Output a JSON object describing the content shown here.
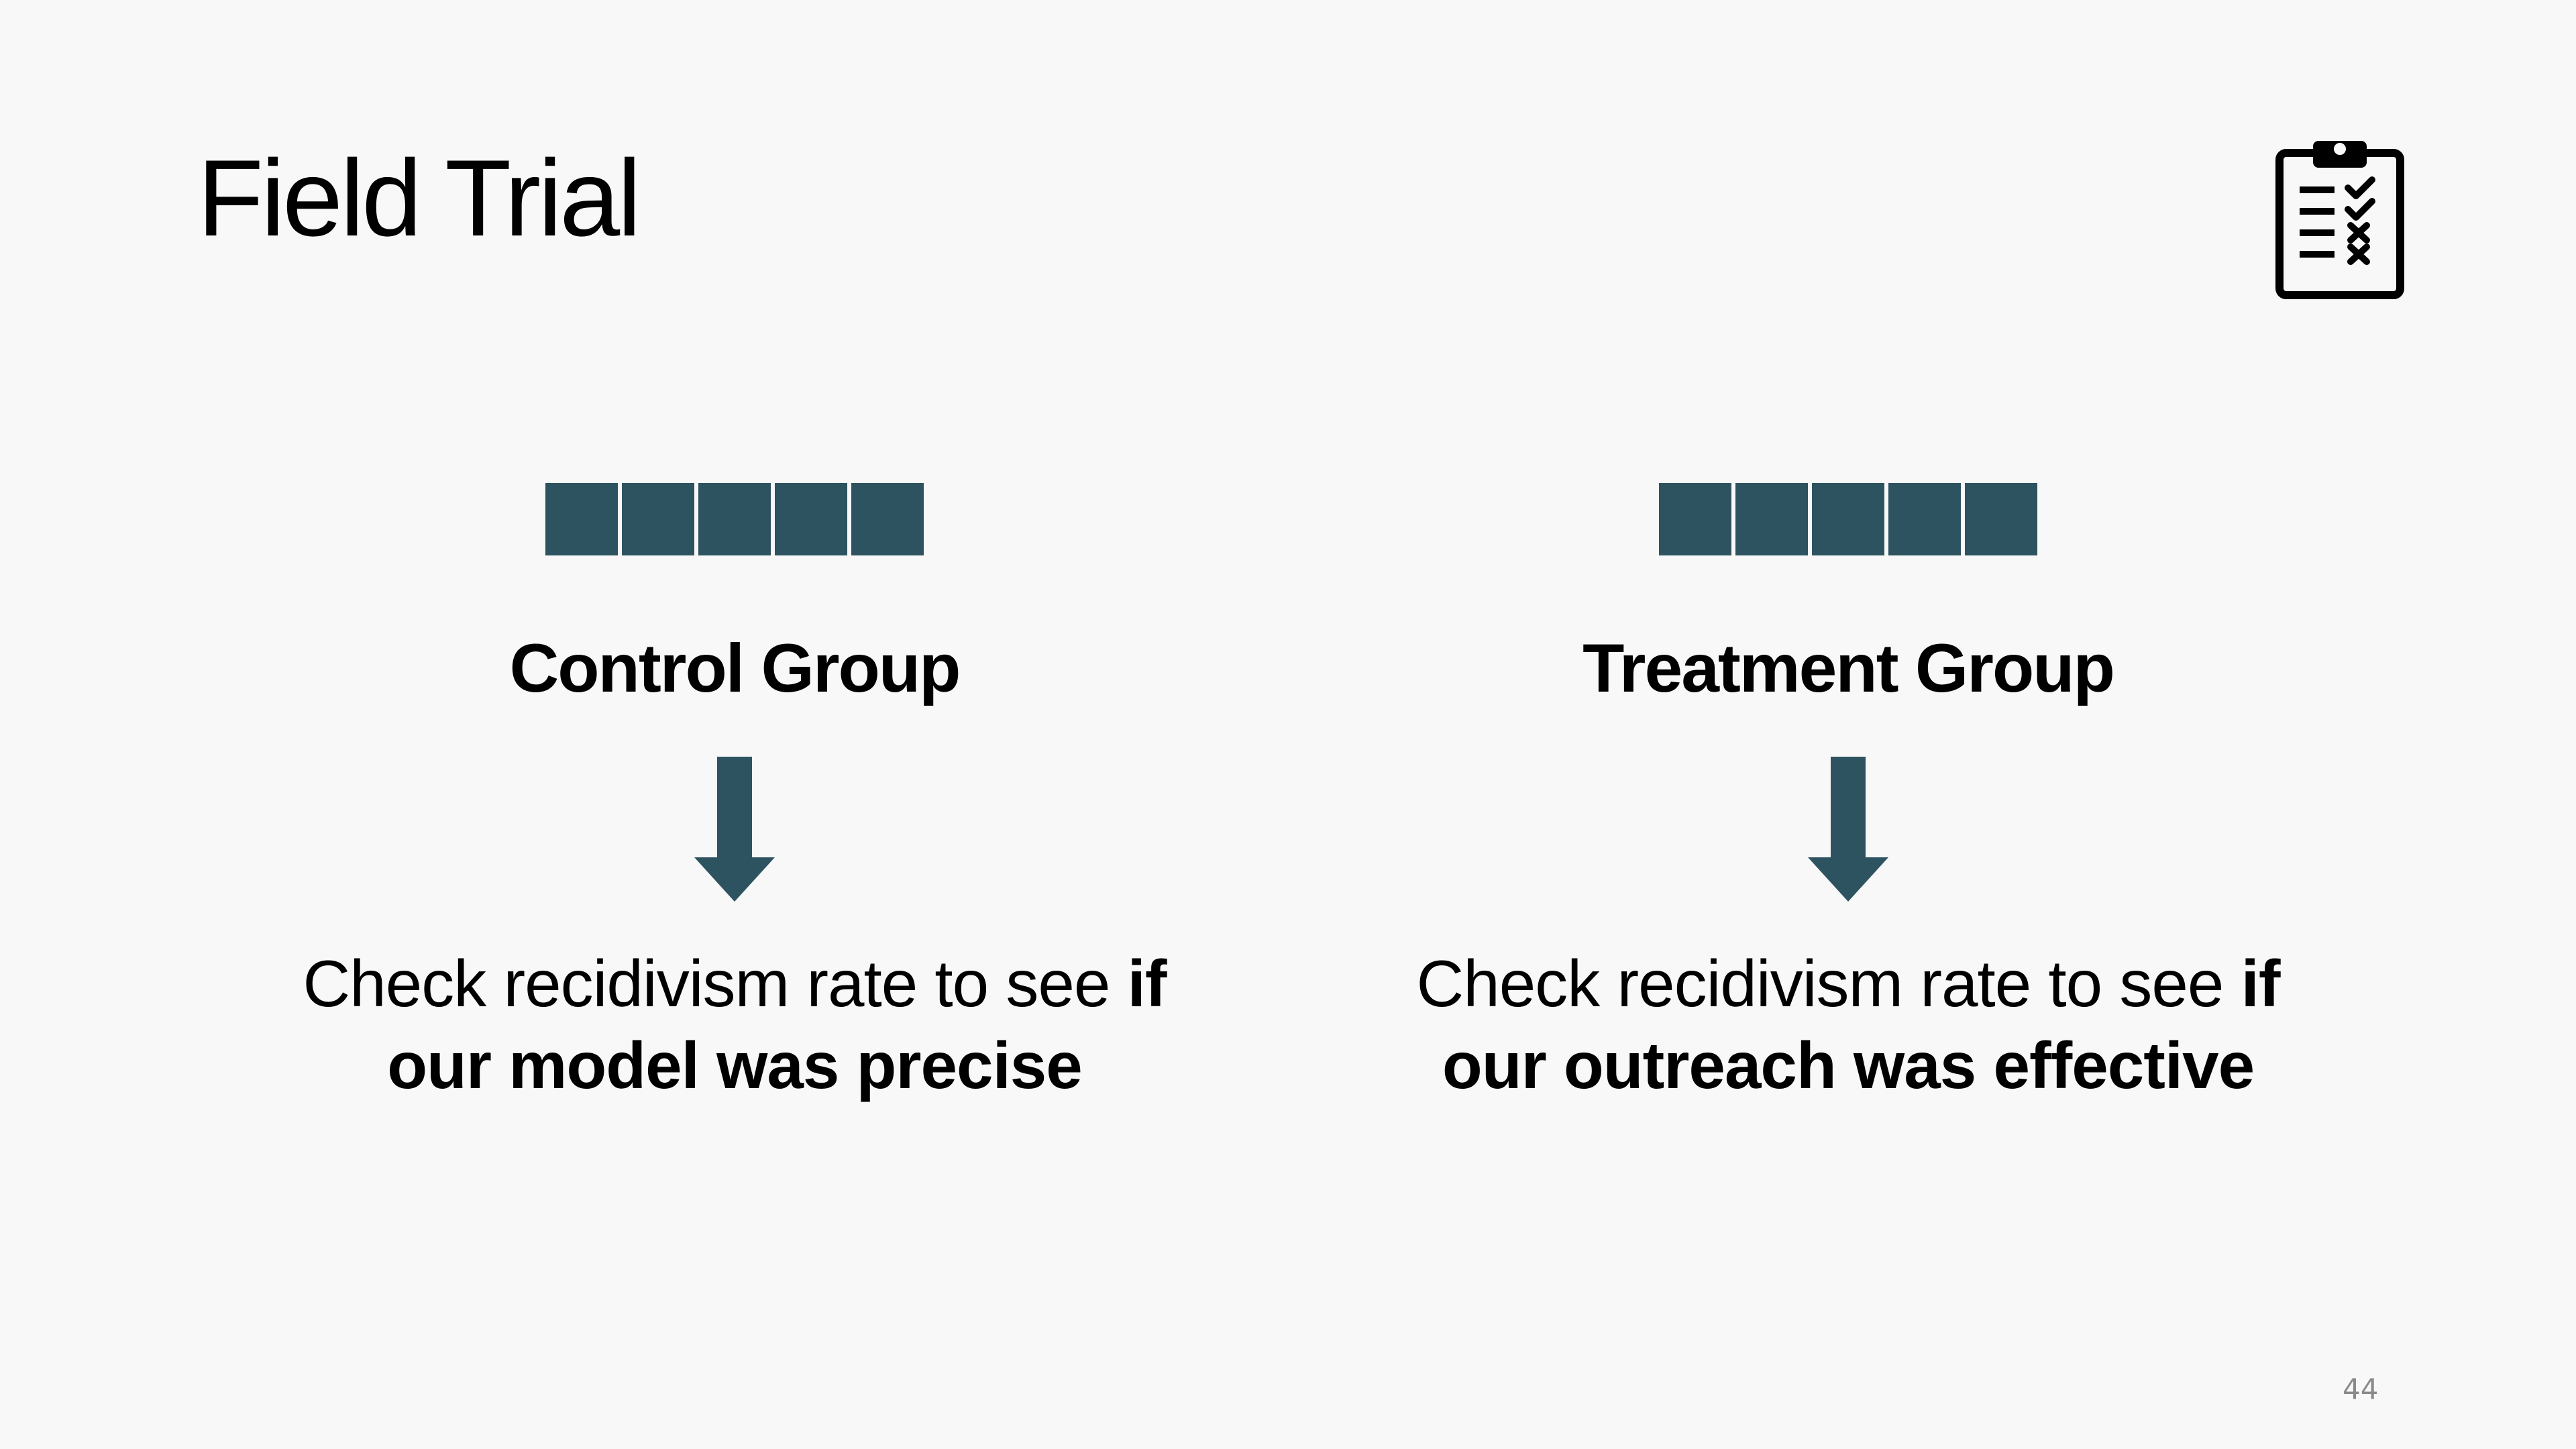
{
  "slide": {
    "title": "Field Trial",
    "page_number": "44"
  },
  "icon": {
    "name": "clipboard-checklist-icon"
  },
  "colors": {
    "accent": "#2e5360",
    "background": "#f8f8f8",
    "text": "#000000",
    "page_number": "#8a8a8a"
  },
  "groups": [
    {
      "heading": "Control Group",
      "squares": 5,
      "description_plain": "Check recidivism rate to see ",
      "description_bold": "if our model was precise"
    },
    {
      "heading": "Treatment Group",
      "squares": 5,
      "description_plain": "Check recidivism rate to see ",
      "description_bold": "if our outreach was effective"
    }
  ]
}
